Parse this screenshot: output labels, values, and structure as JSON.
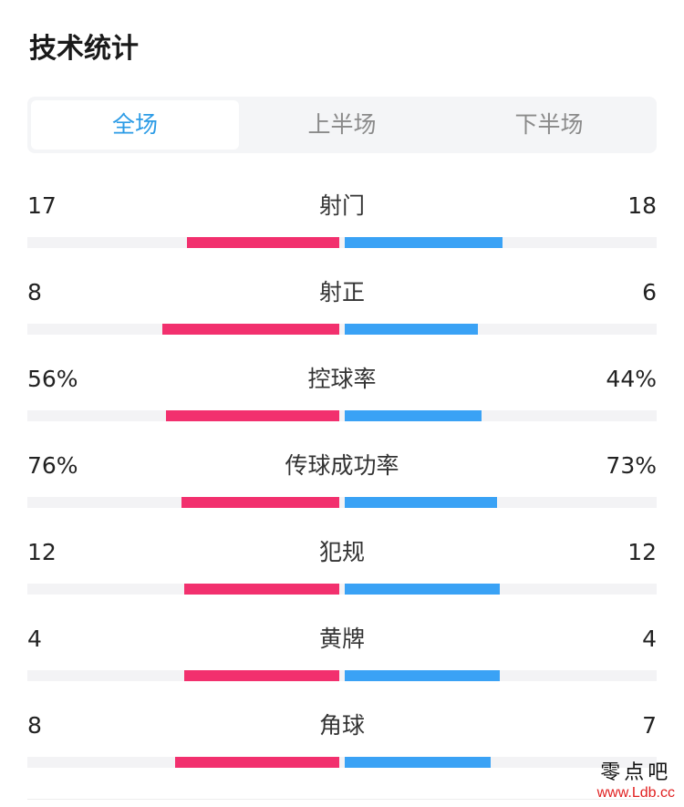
{
  "title": "技术统计",
  "tabs": [
    {
      "label": "全场",
      "active": true
    },
    {
      "label": "上半场",
      "active": false
    },
    {
      "label": "下半场",
      "active": false
    }
  ],
  "colors": {
    "home": "#f2306e",
    "away": "#3aa2f5",
    "active_tab": "#2b9be6"
  },
  "stats": [
    {
      "label": "射门",
      "home": "17",
      "away": "18",
      "home_fill": 0.49,
      "away_fill": 0.51
    },
    {
      "label": "射正",
      "home": "8",
      "away": "6",
      "home_fill": 0.57,
      "away_fill": 0.43
    },
    {
      "label": "控球率",
      "home": "56%",
      "away": "44%",
      "home_fill": 0.56,
      "away_fill": 0.44
    },
    {
      "label": "传球成功率",
      "home": "76%",
      "away": "73%",
      "home_fill": 0.51,
      "away_fill": 0.49
    },
    {
      "label": "犯规",
      "home": "12",
      "away": "12",
      "home_fill": 0.5,
      "away_fill": 0.5
    },
    {
      "label": "黄牌",
      "home": "4",
      "away": "4",
      "home_fill": 0.5,
      "away_fill": 0.5
    },
    {
      "label": "角球",
      "home": "8",
      "away": "7",
      "home_fill": 0.53,
      "away_fill": 0.47
    }
  ],
  "watermark": {
    "name": "零点吧",
    "url": "www.Ldb.cc"
  }
}
